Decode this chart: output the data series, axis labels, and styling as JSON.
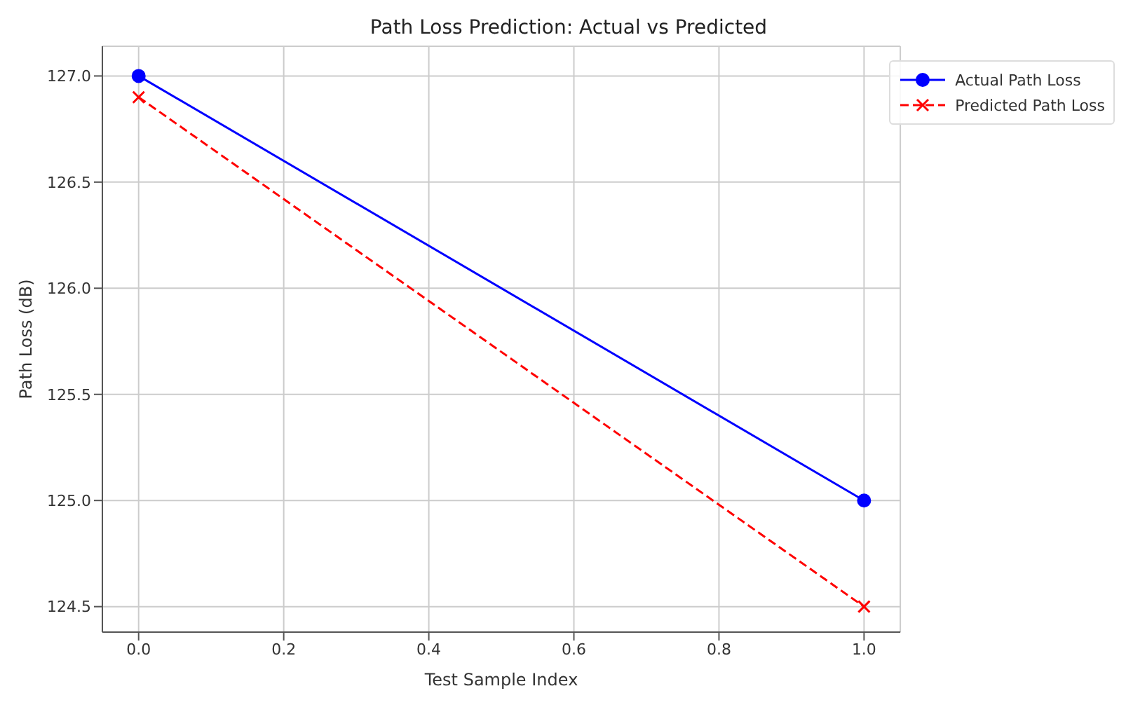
{
  "chart_data": {
    "type": "line",
    "title": "Path Loss Prediction: Actual vs Predicted",
    "xlabel": "Test Sample Index",
    "ylabel": "Path Loss (dB)",
    "x": [
      0,
      1
    ],
    "series": [
      {
        "name": "Actual Path Loss",
        "color": "#0000ff",
        "values": [
          127.0,
          125.0
        ],
        "marker": "circle",
        "line_style": "solid"
      },
      {
        "name": "Predicted Path Loss",
        "color": "#ff0000",
        "values": [
          126.9,
          124.5
        ],
        "marker": "cross",
        "line_style": "dashed"
      }
    ],
    "xlim": [
      -0.05,
      1.05
    ],
    "xticks": [
      {
        "value": 0,
        "label": "0.0"
      },
      0.2,
      0.4,
      0.6,
      0.8,
      {
        "value": 1,
        "label": "1.0"
      }
    ],
    "ylim": [
      124.38,
      127.14
    ],
    "yticks": [
      {
        "value": 124.5,
        "label": "124.5"
      },
      {
        "value": 125,
        "label": "125.0"
      },
      {
        "value": 125.5,
        "label": "125.5"
      },
      {
        "value": 126,
        "label": "126.0"
      },
      {
        "value": 126.5,
        "label": "126.5"
      },
      {
        "value": 127,
        "label": "127.0"
      }
    ],
    "grid": true,
    "legend": "top right"
  }
}
